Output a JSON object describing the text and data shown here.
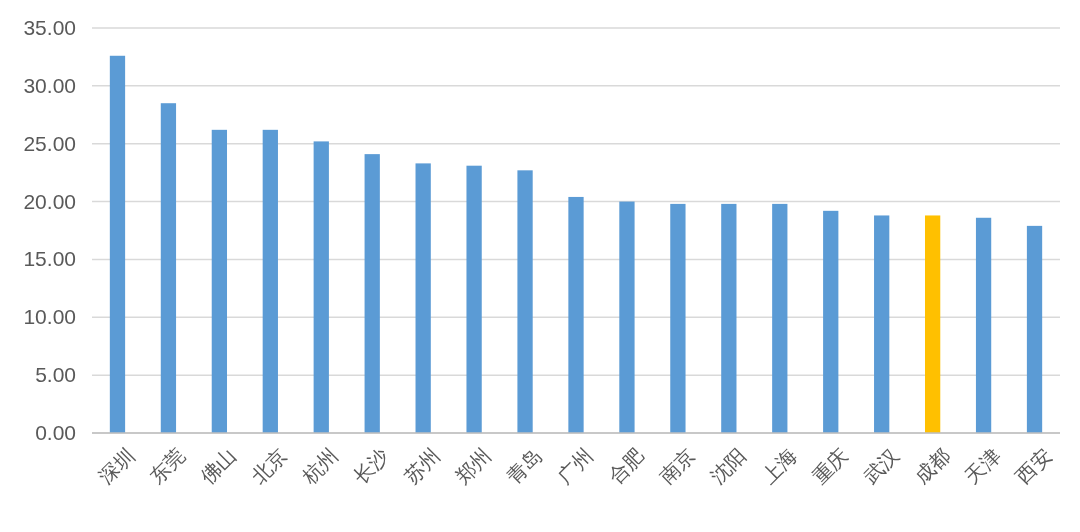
{
  "chart_data": {
    "type": "bar",
    "categories": [
      "深圳",
      "东莞",
      "佛山",
      "北京",
      "杭州",
      "长沙",
      "苏州",
      "郑州",
      "青岛",
      "广州",
      "合肥",
      "南京",
      "沈阳",
      "上海",
      "重庆",
      "武汉",
      "成都",
      "天津",
      "西安"
    ],
    "values": [
      32.6,
      28.5,
      26.2,
      26.2,
      25.2,
      24.1,
      23.3,
      23.1,
      22.7,
      20.4,
      20.0,
      19.8,
      19.8,
      19.8,
      19.2,
      18.8,
      18.8,
      18.6,
      17.9
    ],
    "colors": [
      "#5b9bd5",
      "#5b9bd5",
      "#5b9bd5",
      "#5b9bd5",
      "#5b9bd5",
      "#5b9bd5",
      "#5b9bd5",
      "#5b9bd5",
      "#5b9bd5",
      "#5b9bd5",
      "#5b9bd5",
      "#5b9bd5",
      "#5b9bd5",
      "#5b9bd5",
      "#5b9bd5",
      "#5b9bd5",
      "#ffc000",
      "#5b9bd5",
      "#5b9bd5"
    ],
    "ylim": [
      0,
      35
    ],
    "yticks": [
      {
        "value": 0,
        "label": "0.00"
      },
      {
        "value": 5,
        "label": "5.00"
      },
      {
        "value": 10,
        "label": "10.00"
      },
      {
        "value": 15,
        "label": "15.00"
      },
      {
        "value": 20,
        "label": "20.00"
      },
      {
        "value": 25,
        "label": "25.00"
      },
      {
        "value": 30,
        "label": "30.00"
      },
      {
        "value": 35,
        "label": "35.00"
      }
    ],
    "grid": "y"
  }
}
